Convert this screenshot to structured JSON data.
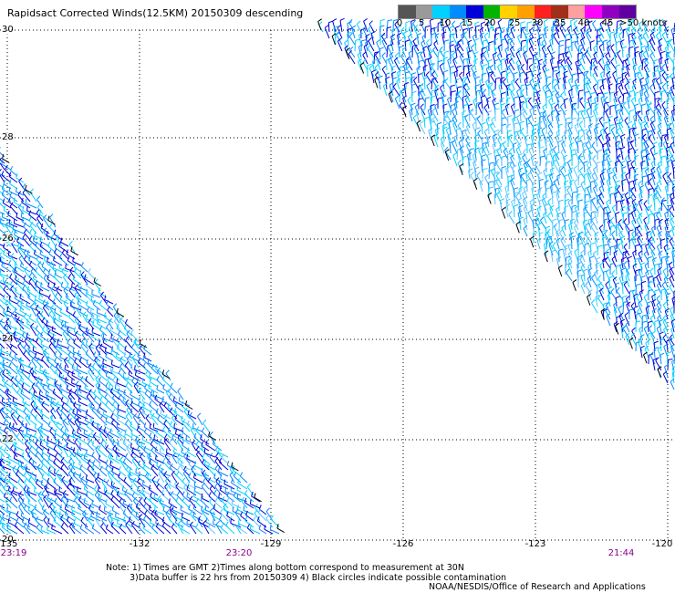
{
  "title": "Rapidsact Corrected Winds(12.5KM) 20150309 descending",
  "colorbar": {
    "colors": [
      "#555555",
      "#9a9a9a",
      "#00d2ff",
      "#008cff",
      "#0000d8",
      "#00b400",
      "#ffd200",
      "#ffa000",
      "#ff2020",
      "#a03018",
      "#ffa0a0",
      "#ff00ff",
      "#9000c0",
      "#6000a0"
    ],
    "labels": [
      "0",
      "5",
      "10",
      "15",
      "20",
      "25",
      "30",
      "35",
      "40",
      "45",
      ">50 knots"
    ]
  },
  "lat_labels": [
    "30",
    "28",
    "26",
    "24",
    "22",
    "20"
  ],
  "lon_labels": [
    "-135",
    "-132",
    "-129",
    "-126",
    "-123",
    "-120"
  ],
  "time_labels": [
    "23:19",
    "23:20",
    "21:44"
  ],
  "notes": [
    "Note: 1) Times are GMT 2)Times along bottom correspond to measurement at 30N",
    "3)Data buffer is 22 hrs from 20150309 4) Black circles indicate possible contamination"
  ],
  "credit": "NOAA/NESDIS/Office of Research and Applications"
}
